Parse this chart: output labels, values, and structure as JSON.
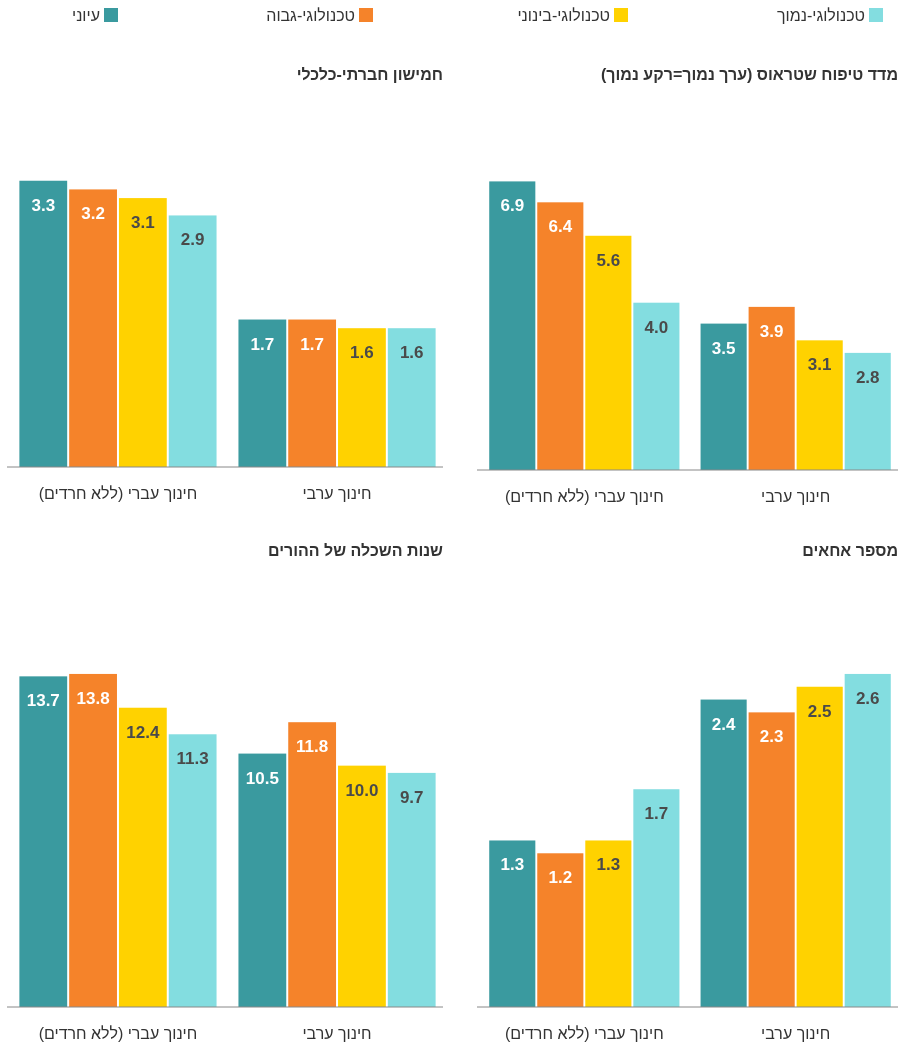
{
  "chart_data": [
    {
      "type": "bar",
      "title": "מדד טיפוח שטראוס (ערך נמוך=רקע נמוך)",
      "categories": [
        "חינוך עברי (ללא חרדים)",
        "חינוך ערבי"
      ],
      "legend": "top",
      "series": [
        {
          "name": "עיוני",
          "color": "#3a9a9f",
          "values": [
            6.9,
            3.5
          ],
          "value_labels": [
            "6.9",
            "3.5"
          ]
        },
        {
          "name": "טכנולוגי-גבוה",
          "color": "#f5832a",
          "values": [
            6.4,
            3.9
          ],
          "value_labels": [
            "6.4",
            "3.9"
          ]
        },
        {
          "name": "טכנולוגי-בינוני",
          "color": "#ffd200",
          "values": [
            5.6,
            3.1
          ],
          "value_labels": [
            "5.6",
            "3.1"
          ]
        },
        {
          "name": "טכנולוגי-נמוך",
          "color": "#83dde0",
          "values": [
            4.0,
            2.8
          ],
          "value_labels": [
            "4.0",
            "2.8"
          ]
        }
      ]
    },
    {
      "type": "bar",
      "title": "חמישון חברתי-כלכלי",
      "categories": [
        "חינוך עברי (ללא חרדים)",
        "חינוך ערבי"
      ],
      "series": [
        {
          "color": "#3a9a9f",
          "values": [
            3.3,
            1.7
          ],
          "value_labels": [
            "3.3",
            "1.7"
          ]
        },
        {
          "color": "#f5832a",
          "values": [
            3.2,
            1.7
          ],
          "value_labels": [
            "3.2",
            "1.7"
          ]
        },
        {
          "color": "#ffd200",
          "values": [
            3.1,
            1.6
          ],
          "value_labels": [
            "3.1",
            "1.6"
          ]
        },
        {
          "color": "#83dde0",
          "values": [
            2.9,
            1.6
          ],
          "value_labels": [
            "2.9",
            "1.6"
          ]
        }
      ]
    },
    {
      "type": "bar",
      "title": "מספר אחאים",
      "categories": [
        "חינוך עברי (ללא חרדים)",
        "חינוך ערבי"
      ],
      "series": [
        {
          "color": "#3a9a9f",
          "values": [
            1.3,
            2.4
          ],
          "value_labels": [
            "1.3",
            "2.4"
          ]
        },
        {
          "color": "#f5832a",
          "values": [
            1.2,
            2.3
          ],
          "value_labels": [
            "1.2",
            "2.3"
          ]
        },
        {
          "color": "#ffd200",
          "values": [
            1.3,
            2.5
          ],
          "value_labels": [
            "1.3",
            "2.5"
          ]
        },
        {
          "color": "#83dde0",
          "values": [
            1.7,
            2.6
          ],
          "value_labels": [
            "1.7",
            "2.6"
          ]
        }
      ]
    },
    {
      "type": "bar",
      "title": "שנות השכלה של ההורים",
      "categories": [
        "חינוך עברי (ללא חרדים)",
        "חינוך ערבי"
      ],
      "series": [
        {
          "color": "#3a9a9f",
          "values": [
            13.7,
            10.5
          ],
          "value_labels": [
            "13.7",
            "10.5"
          ]
        },
        {
          "color": "#f5832a",
          "values": [
            13.8,
            11.8
          ],
          "value_labels": [
            "13.8",
            "11.8"
          ]
        },
        {
          "color": "#ffd200",
          "values": [
            12.4,
            10.0
          ],
          "value_labels": [
            "12.4",
            "10.0"
          ]
        },
        {
          "color": "#83dde0",
          "values": [
            11.3,
            9.7
          ],
          "value_labels": [
            "11.3",
            "9.7"
          ]
        }
      ]
    }
  ]
}
